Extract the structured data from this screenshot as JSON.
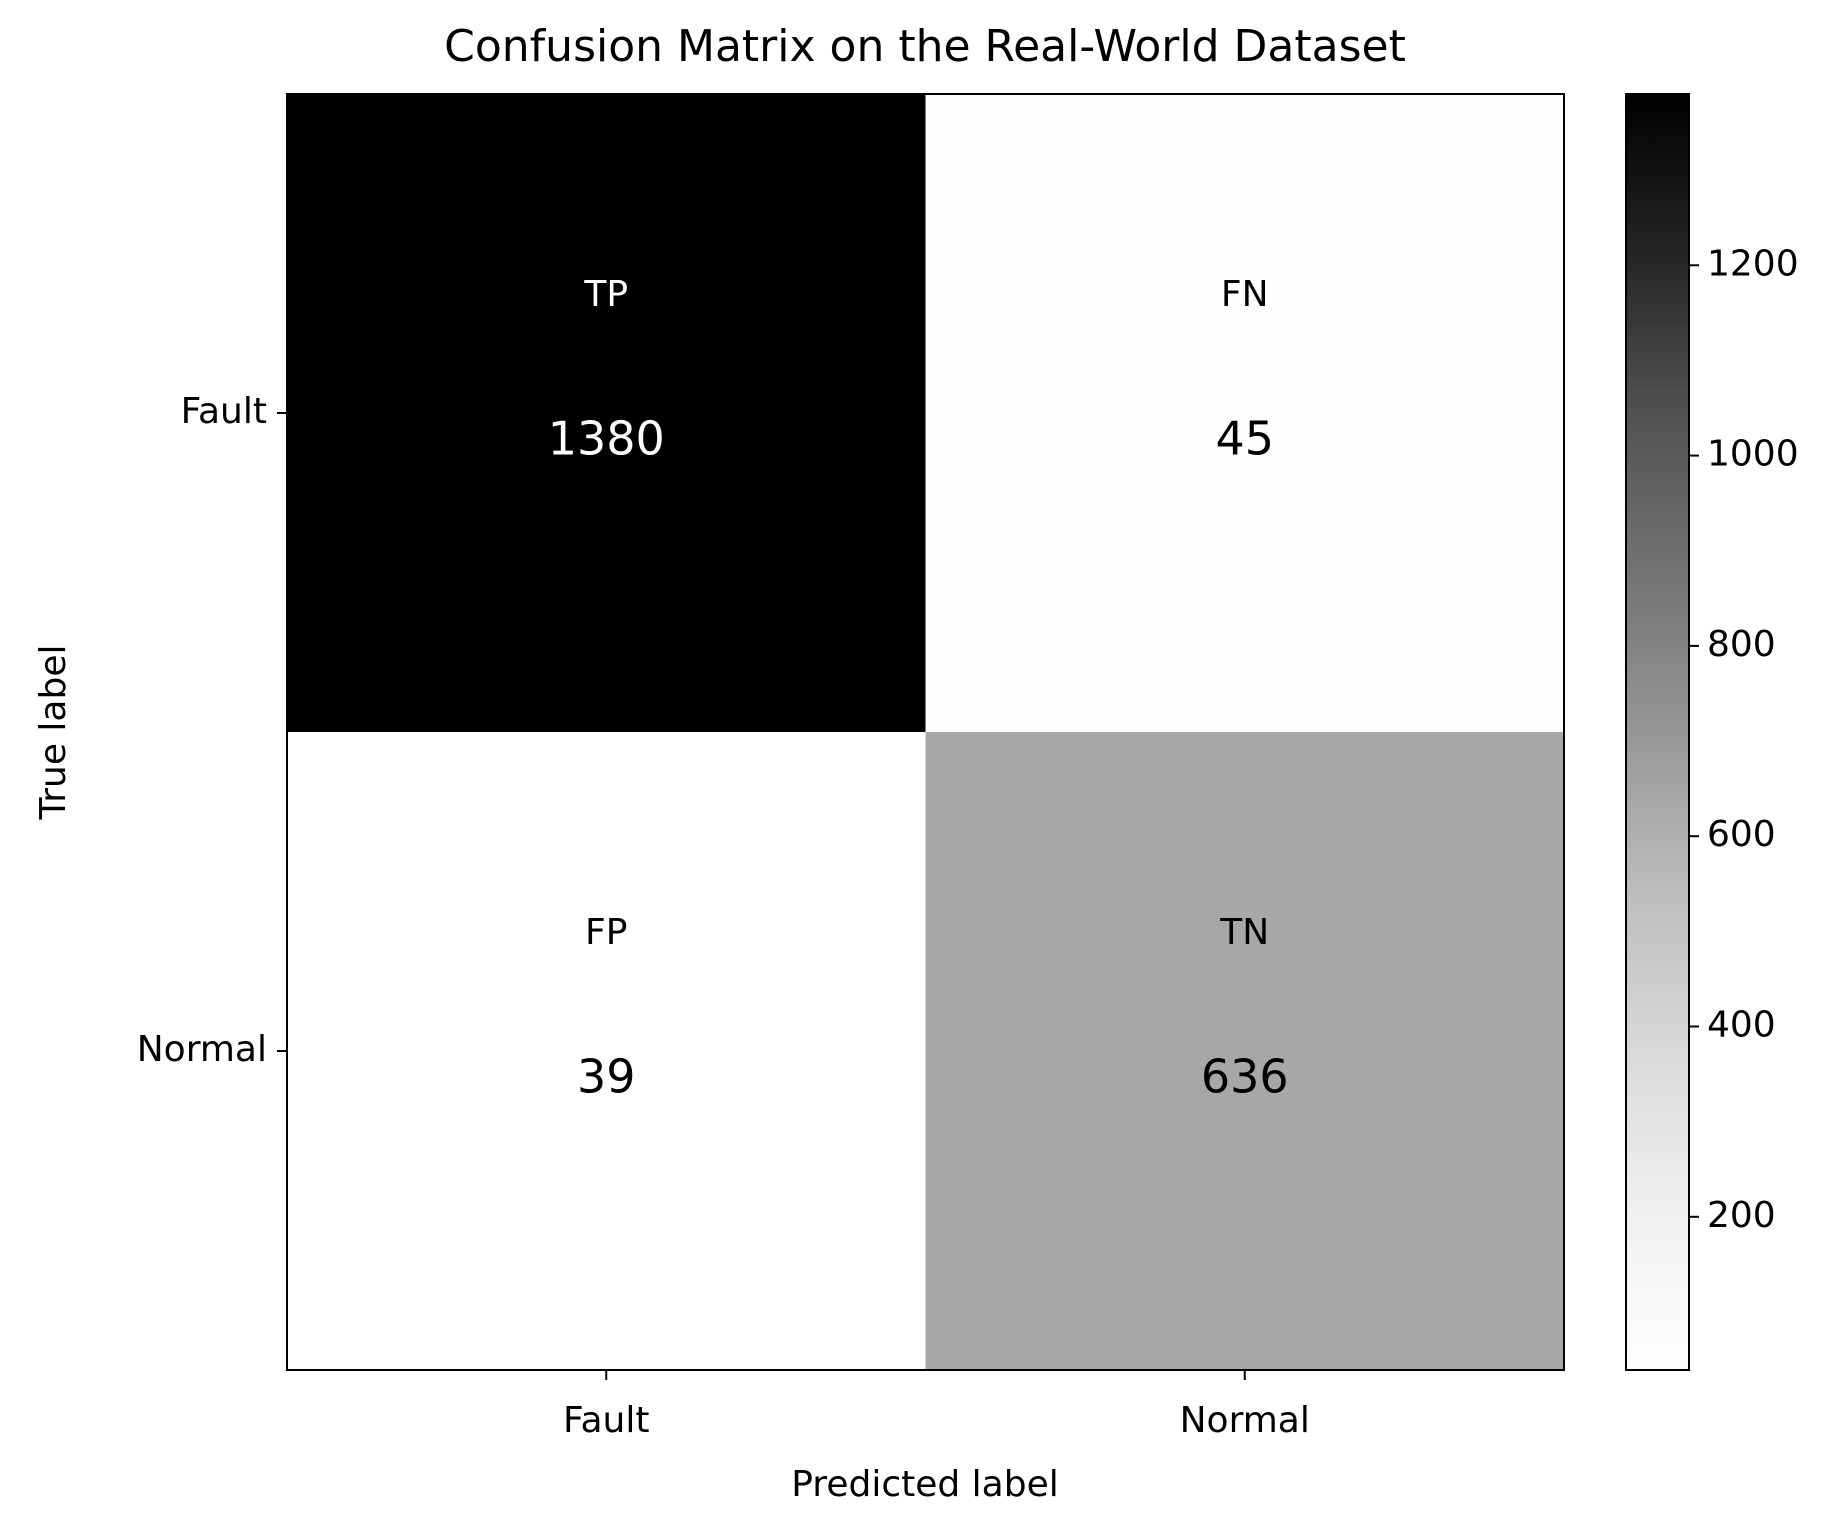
{
  "chart_data": {
    "type": "heatmap",
    "title": "Confusion Matrix on the Real-World Dataset",
    "x_label": "Predicted label",
    "y_label": "True label",
    "x_categories": [
      "Fault",
      "Normal"
    ],
    "y_categories": [
      "Fault",
      "Normal"
    ],
    "cell_labels": [
      [
        "TP",
        "FN"
      ],
      [
        "FP",
        "TN"
      ]
    ],
    "values": [
      [
        1380,
        45
      ],
      [
        39,
        636
      ]
    ],
    "cmap": "Greys",
    "colorbar": {
      "lim": [
        39,
        1380
      ],
      "ticks": [
        200,
        400,
        600,
        800,
        1000,
        1200
      ]
    }
  }
}
